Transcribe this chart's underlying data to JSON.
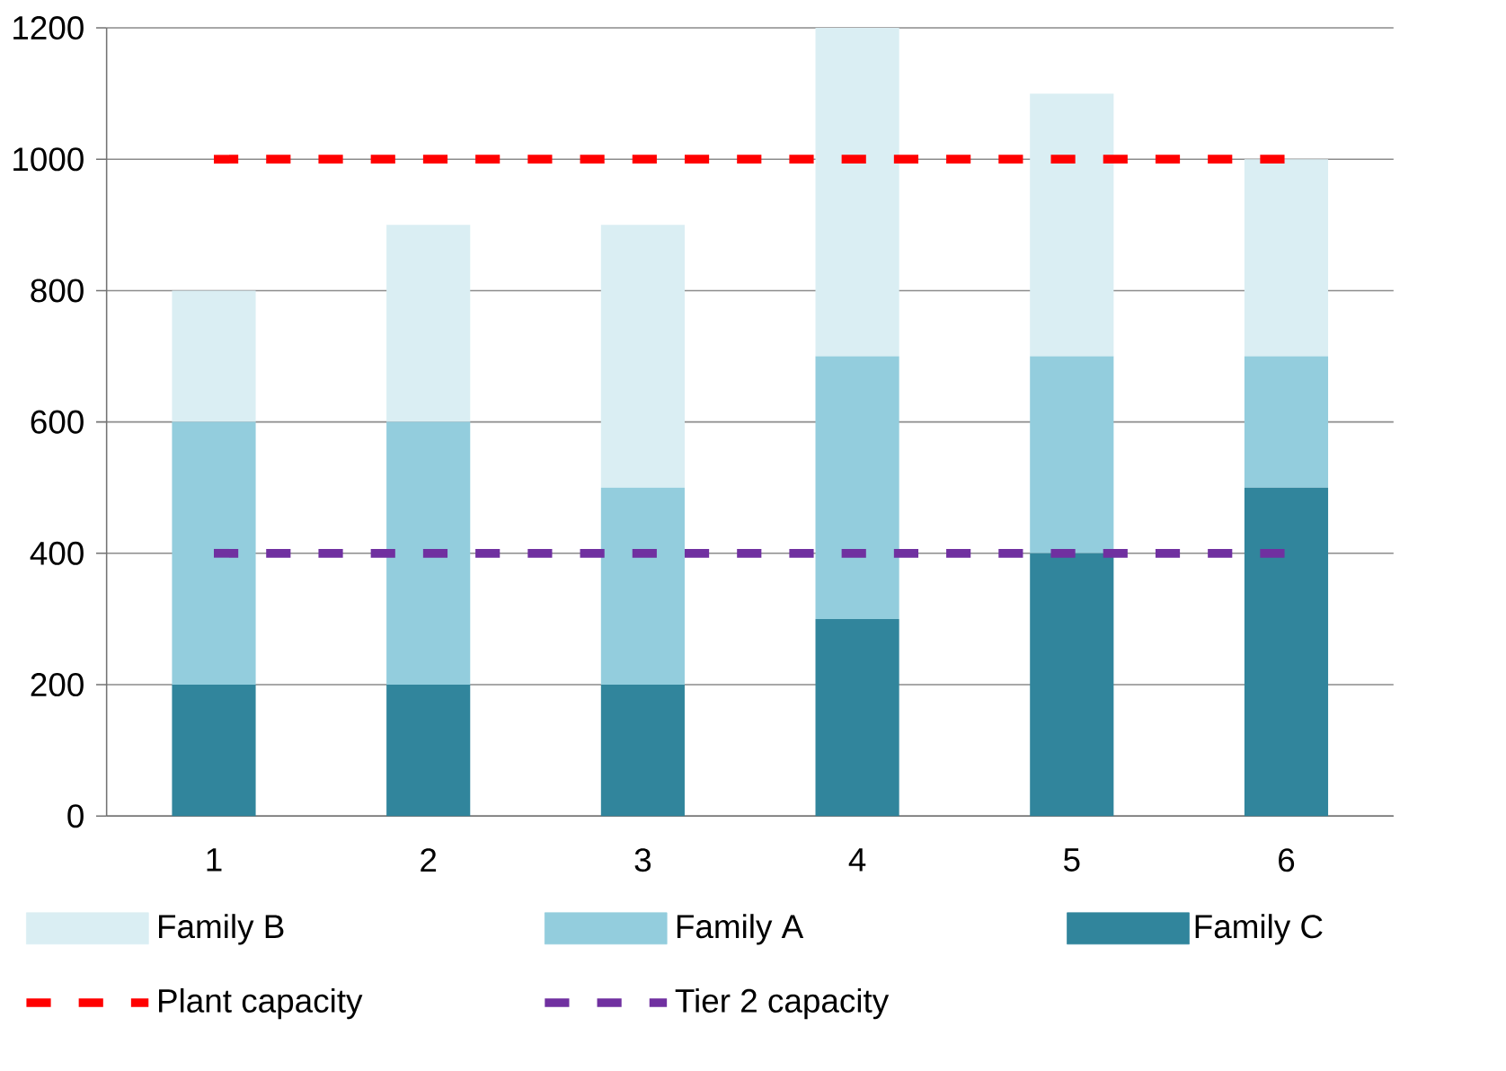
{
  "chart_data": {
    "type": "bar",
    "stacked": true,
    "categories": [
      "1",
      "2",
      "3",
      "4",
      "5",
      "6"
    ],
    "series": [
      {
        "name": "Family C",
        "color": "#31859c",
        "values": [
          200,
          200,
          200,
          300,
          400,
          500
        ]
      },
      {
        "name": "Family A",
        "color": "#93cddd",
        "values": [
          400,
          400,
          300,
          400,
          300,
          200
        ]
      },
      {
        "name": "Family B",
        "color": "#daeef3",
        "values": [
          200,
          300,
          400,
          500,
          400,
          300
        ]
      },
      {
        "name": "Plant capacity",
        "type": "line",
        "line_style": "dashed",
        "color": "#ff0000",
        "values": [
          1000,
          1000,
          1000,
          1000,
          1000,
          1000
        ]
      },
      {
        "name": "Tier 2 capacity",
        "type": "line",
        "line_style": "dashed",
        "color": "#7030a0",
        "values": [
          400,
          400,
          400,
          400,
          400,
          400
        ]
      }
    ],
    "ylim": [
      0,
      1200
    ],
    "yticks": [
      0,
      200,
      400,
      600,
      800,
      1000,
      1200
    ],
    "grid": "y",
    "legend": "bottom"
  }
}
